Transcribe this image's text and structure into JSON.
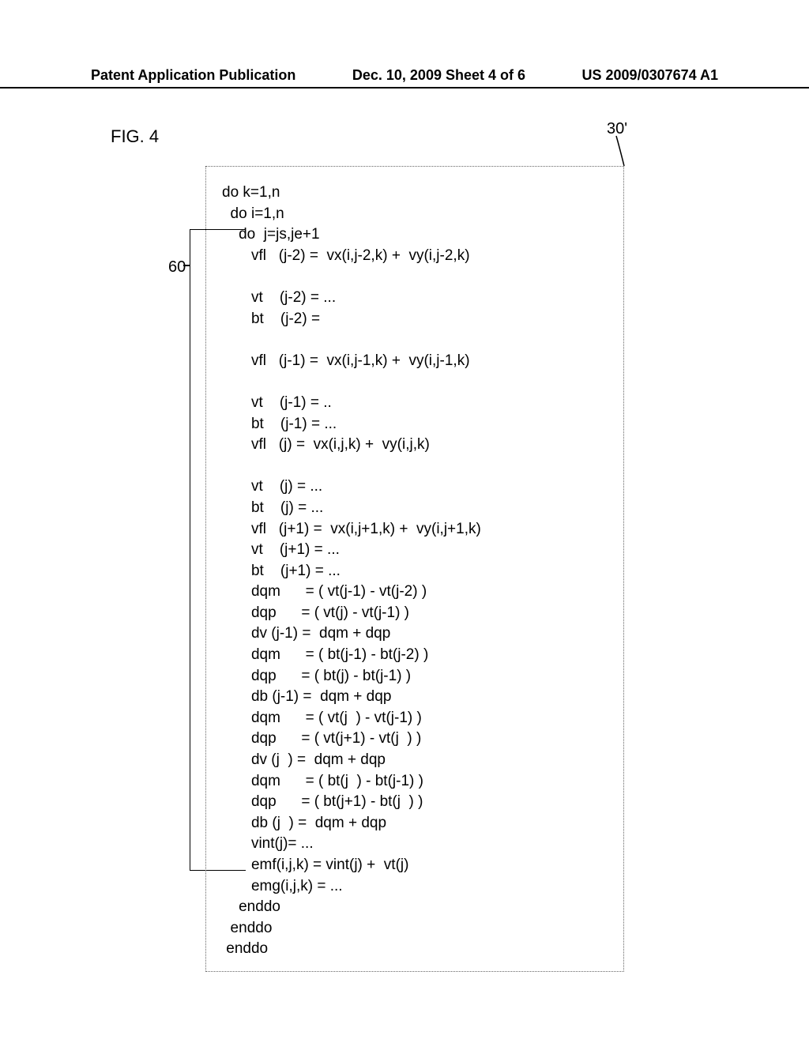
{
  "header": {
    "left": "Patent Application Publication",
    "center": "Dec. 10, 2009  Sheet 4 of 6",
    "right": "US 2009/0307674 A1"
  },
  "figure": {
    "label": "FIG. 4",
    "ref30": "30'",
    "ref60": "60"
  },
  "code": {
    "lines": [
      "do k=1,n",
      "  do i=1,n",
      "    do  j=js,je+1",
      "       vfl   (j-2) =  vx(i,j-2,k) +  vy(i,j-2,k)",
      "",
      "       vt    (j-2) = ...",
      "       bt    (j-2) =",
      "",
      "       vfl   (j-1) =  vx(i,j-1,k) +  vy(i,j-1,k)",
      "",
      "       vt    (j-1) = ..",
      "       bt    (j-1) = ...",
      "       vfl   (j) =  vx(i,j,k) +  vy(i,j,k)",
      "",
      "       vt    (j) = ...",
      "       bt    (j) = ...",
      "       vfl   (j+1) =  vx(i,j+1,k) +  vy(i,j+1,k)",
      "       vt    (j+1) = ...",
      "       bt    (j+1) = ...",
      "       dqm      = ( vt(j-1) - vt(j-2) )",
      "       dqp      = ( vt(j) - vt(j-1) )",
      "       dv (j-1) =  dqm + dqp",
      "       dqm      = ( bt(j-1) - bt(j-2) )",
      "       dqp      = ( bt(j) - bt(j-1) )",
      "       db (j-1) =  dqm + dqp",
      "       dqm      = ( vt(j  ) - vt(j-1) )",
      "       dqp      = ( vt(j+1) - vt(j  ) )",
      "       dv (j  ) =  dqm + dqp",
      "       dqm      = ( bt(j  ) - bt(j-1) )",
      "       dqp      = ( bt(j+1) - bt(j  ) )",
      "       db (j  ) =  dqm + dqp",
      "       vint(j)= ...",
      "       emf(i,j,k) = vint(j) +  vt(j)",
      "       emg(i,j,k) = ...",
      "    enddo",
      "  enddo",
      " enddo"
    ]
  }
}
